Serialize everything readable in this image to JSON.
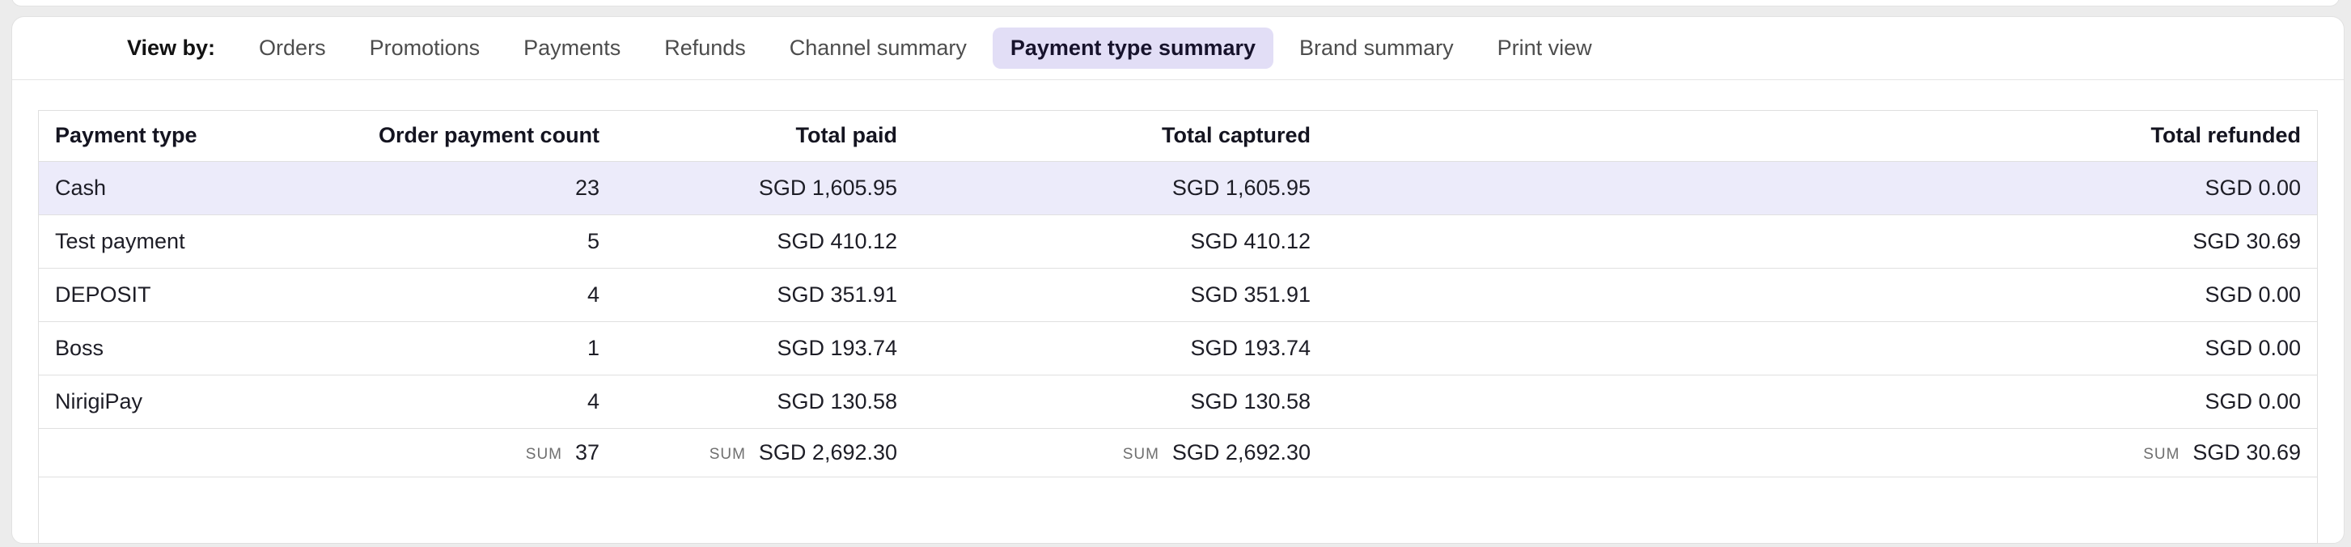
{
  "tabs": {
    "view_by_label": "View by:",
    "items": [
      {
        "label": "Orders",
        "active": false
      },
      {
        "label": "Promotions",
        "active": false
      },
      {
        "label": "Payments",
        "active": false
      },
      {
        "label": "Refunds",
        "active": false
      },
      {
        "label": "Channel summary",
        "active": false
      },
      {
        "label": "Payment type summary",
        "active": true
      },
      {
        "label": "Brand summary",
        "active": false
      },
      {
        "label": "Print view",
        "active": false
      }
    ]
  },
  "table": {
    "columns": [
      "Payment type",
      "Order payment count",
      "Total paid",
      "Total captured",
      "Total refunded"
    ],
    "rows": [
      {
        "payment_type": "Cash",
        "count": "23",
        "paid": "SGD 1,605.95",
        "captured": "SGD 1,605.95",
        "refunded": "SGD 0.00",
        "highlighted": true
      },
      {
        "payment_type": "Test payment",
        "count": "5",
        "paid": "SGD 410.12",
        "captured": "SGD 410.12",
        "refunded": "SGD 30.69",
        "highlighted": false
      },
      {
        "payment_type": "DEPOSIT",
        "count": "4",
        "paid": "SGD 351.91",
        "captured": "SGD 351.91",
        "refunded": "SGD 0.00",
        "highlighted": false
      },
      {
        "payment_type": "Boss",
        "count": "1",
        "paid": "SGD 193.74",
        "captured": "SGD 193.74",
        "refunded": "SGD 0.00",
        "highlighted": false
      },
      {
        "payment_type": "NirigiPay",
        "count": "4",
        "paid": "SGD 130.58",
        "captured": "SGD 130.58",
        "refunded": "SGD 0.00",
        "highlighted": false
      }
    ],
    "sum_row": {
      "label": "SUM",
      "count": "37",
      "paid": "SGD 2,692.30",
      "captured": "SGD 2,692.30",
      "refunded": "SGD 30.69"
    }
  },
  "colors": {
    "page_background": "#ececec",
    "card_background": "#ffffff",
    "active_tab_pill": "#e2def6",
    "highlighted_row": "#ecebfa",
    "border": "#e0e0e0",
    "sum_label": "#6f6f6f"
  }
}
